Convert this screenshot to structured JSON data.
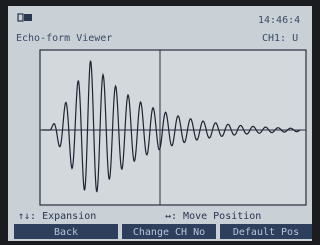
{
  "header": {
    "time": "14:46:4",
    "title": "Echo-form Viewer",
    "channel": "CH1: U"
  },
  "hints": [
    "↑↓: Expansion",
    "↔: Move Position"
  ],
  "buttons": [
    "Back",
    "Change CH No",
    "Default Pos"
  ]
}
